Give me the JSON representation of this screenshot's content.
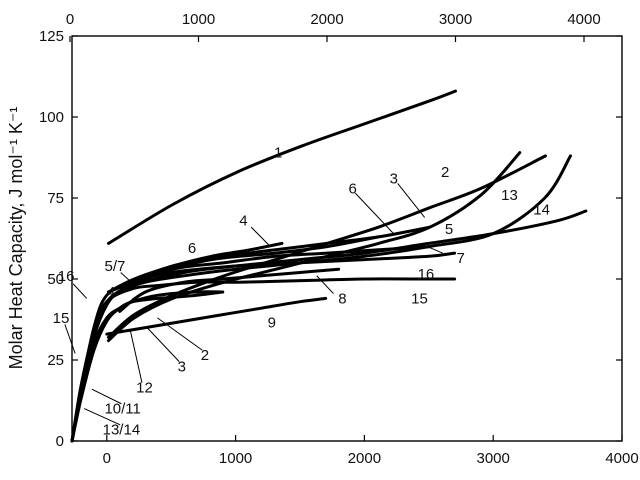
{
  "chart_data": {
    "type": "line",
    "title": "",
    "ylabel": "Molar Heat Capacity, J mol⁻¹ K⁻¹",
    "xlabel": "",
    "xlim_bottom": [
      -270,
      4000
    ],
    "xlim_top": [
      0,
      4000
    ],
    "ylim": [
      0,
      125
    ],
    "x_ticks_bottom": [
      0,
      1000,
      2000,
      3000,
      4000
    ],
    "x_ticks_top": [
      0,
      1000,
      2000,
      3000,
      4000
    ],
    "y_ticks": [
      0,
      25,
      50,
      75,
      100,
      125
    ],
    "grid": false,
    "legend": "none",
    "line_color": "#000000",
    "series": [
      {
        "name": "1",
        "axis": "top",
        "x": [
          300,
          800,
          1300,
          1800,
          2300,
          2800,
          3000
        ],
        "y": [
          61,
          73,
          83,
          91,
          98,
          105,
          108
        ]
      },
      {
        "name": "2",
        "axis": "top",
        "x": [
          300,
          500,
          800,
          1200,
          1600,
          2000,
          2400,
          2800,
          3200,
          3700
        ],
        "y": [
          32,
          39,
          45,
          51,
          56,
          61,
          66,
          72,
          78,
          88
        ]
      },
      {
        "name": "3",
        "axis": "top",
        "x": [
          300,
          500,
          800,
          1200,
          1600,
          2000,
          2400,
          2800,
          3200,
          3500
        ],
        "y": [
          31,
          38,
          44,
          49,
          53,
          57,
          61,
          66,
          76,
          89
        ]
      },
      {
        "name": "4",
        "axis": "top",
        "x": [
          300,
          500,
          800,
          1100,
          1400,
          1650
        ],
        "y": [
          46,
          50,
          54,
          57,
          59,
          61
        ]
      },
      {
        "name": "5",
        "axis": "top",
        "x": [
          400,
          800,
          1200,
          1600,
          2000,
          2400,
          2800
        ],
        "y": [
          48,
          54,
          57,
          59,
          61,
          63,
          66
        ]
      },
      {
        "name": "6",
        "axis": "top",
        "x": [
          300,
          700,
          1100,
          1600,
          2000,
          2400
        ],
        "y": [
          46,
          52,
          56,
          58,
          60,
          63
        ]
      },
      {
        "name": "7",
        "axis": "top",
        "x": [
          400,
          800,
          1200,
          1600,
          2000,
          2400,
          2800
        ],
        "y": [
          47,
          53,
          55,
          57,
          58,
          59,
          60
        ]
      },
      {
        "name": "8",
        "axis": "bottom",
        "x": [
          100,
          300,
          600,
          900,
          1200,
          1500,
          1800
        ],
        "y": [
          40,
          46,
          49,
          50,
          51,
          52,
          53
        ]
      },
      {
        "name": "9",
        "axis": "bottom",
        "x": [
          0,
          300,
          600,
          900,
          1200,
          1500,
          1700
        ],
        "y": [
          33,
          35,
          37,
          39,
          41,
          43,
          44
        ]
      },
      {
        "name": "10/11",
        "axis": "bottom",
        "x": [
          -270,
          -200,
          -100,
          0,
          100,
          200,
          400,
          700,
          900
        ],
        "y": [
          0,
          14,
          30,
          38,
          41,
          43,
          44,
          45,
          46
        ]
      },
      {
        "name": "12",
        "axis": "bottom",
        "x": [
          -270,
          -200,
          -100,
          0,
          100,
          200,
          400,
          700,
          900
        ],
        "y": [
          0,
          13,
          28,
          37,
          41,
          43,
          45,
          46,
          46
        ]
      },
      {
        "name": "13/14",
        "axis": "bottom",
        "x": [
          -270,
          -200,
          -100,
          0,
          100,
          300,
          600,
          1000,
          1500,
          2000,
          2500,
          3000,
          3400,
          3600
        ],
        "y": [
          0,
          14,
          32,
          42,
          46,
          49,
          51,
          53,
          55,
          57,
          60,
          64,
          75,
          88
        ]
      },
      {
        "name": "14",
        "axis": "bottom",
        "x": [
          -270,
          -200,
          -100,
          0,
          200,
          600,
          1000,
          1500,
          2000,
          2500,
          3000,
          3500,
          3720
        ],
        "y": [
          0,
          15,
          33,
          43,
          48,
          52,
          54,
          56,
          58,
          61,
          64,
          68,
          71
        ]
      },
      {
        "name": "15",
        "axis": "bottom",
        "x": [
          -270,
          -200,
          -100,
          0,
          200,
          400,
          700,
          1000,
          1500,
          2000,
          2500,
          2700
        ],
        "y": [
          0,
          17,
          34,
          43,
          47,
          48,
          49,
          49,
          49.5,
          50,
          50,
          50
        ]
      },
      {
        "name": "16",
        "axis": "bottom",
        "x": [
          -270,
          -200,
          -100,
          0,
          200,
          500,
          1000,
          1500,
          2000,
          2500,
          2700
        ],
        "y": [
          0,
          16,
          35,
          45,
          49,
          52,
          54,
          55,
          56,
          57,
          58
        ]
      }
    ],
    "curve_labels": [
      {
        "text": "1",
        "axis": "top",
        "x": 1620,
        "y": 89
      },
      {
        "text": "2",
        "axis": "top",
        "x": 2920,
        "y": 83
      },
      {
        "text": "3",
        "axis": "top",
        "x": 2520,
        "y": 81
      },
      {
        "text": "13",
        "axis": "top",
        "x": 3420,
        "y": 76
      },
      {
        "text": "14",
        "axis": "top",
        "x": 3670,
        "y": 71.5
      },
      {
        "text": "6",
        "axis": "top",
        "x": 2200,
        "y": 78
      },
      {
        "text": "4",
        "axis": "top",
        "x": 1350,
        "y": 68
      },
      {
        "text": "5",
        "axis": "top",
        "x": 2950,
        "y": 65.5
      },
      {
        "text": "6",
        "axis": "top",
        "x": 950,
        "y": 59.5
      },
      {
        "text": "7",
        "axis": "top",
        "x": 3040,
        "y": 56.5
      },
      {
        "text": "16",
        "axis": "top",
        "x": 2770,
        "y": 51.5
      },
      {
        "text": "15",
        "axis": "top",
        "x": 2720,
        "y": 44
      },
      {
        "text": "8",
        "axis": "top",
        "x": 2120,
        "y": 44
      },
      {
        "text": "9",
        "axis": "top",
        "x": 1570,
        "y": 36.5
      },
      {
        "text": "5/7",
        "axis": "top",
        "x": 350,
        "y": 54
      },
      {
        "text": "16",
        "axis": "top",
        "x": -30,
        "y": 51
      },
      {
        "text": "4",
        "axis": "top",
        "x": 320,
        "y": 46
      },
      {
        "text": "15",
        "axis": "top",
        "x": -70,
        "y": 38
      },
      {
        "text": "2",
        "axis": "top",
        "x": 1050,
        "y": 26.5
      },
      {
        "text": "3",
        "axis": "top",
        "x": 870,
        "y": 23
      },
      {
        "text": "12",
        "axis": "top",
        "x": 580,
        "y": 16.5
      },
      {
        "text": "10/11",
        "axis": "top",
        "x": 410,
        "y": 10
      },
      {
        "text": "13/14",
        "axis": "top",
        "x": 400,
        "y": 3.5
      }
    ],
    "leader_lines": [
      {
        "from": [
          2220,
          76.5
        ],
        "to": [
          2530,
          63.5
        ]
      },
      {
        "from": [
          2550,
          79.5
        ],
        "to": [
          2760,
          69
        ]
      },
      {
        "from": [
          1410,
          66
        ],
        "to": [
          1560,
          60
        ]
      },
      {
        "from": [
          395,
          52
        ],
        "to": [
          490,
          48.5
        ]
      },
      {
        "from": [
          25,
          48.5
        ],
        "to": [
          130,
          44
        ]
      },
      {
        "from": [
          -40,
          36
        ],
        "to": [
          40,
          27
        ]
      },
      {
        "from": [
          1030,
          28
        ],
        "to": [
          680,
          38
        ]
      },
      {
        "from": [
          850,
          24.5
        ],
        "to": [
          600,
          35
        ]
      },
      {
        "from": [
          560,
          18
        ],
        "to": [
          470,
          34
        ]
      },
      {
        "from": [
          400,
          11.5
        ],
        "to": [
          170,
          16
        ]
      },
      {
        "from": [
          390,
          5
        ],
        "to": [
          110,
          10
        ]
      },
      {
        "from": [
          2900,
          58
        ],
        "to": [
          2780,
          60
        ]
      },
      {
        "from": [
          2050,
          45.5
        ],
        "to": [
          1920,
          51
        ]
      }
    ]
  }
}
